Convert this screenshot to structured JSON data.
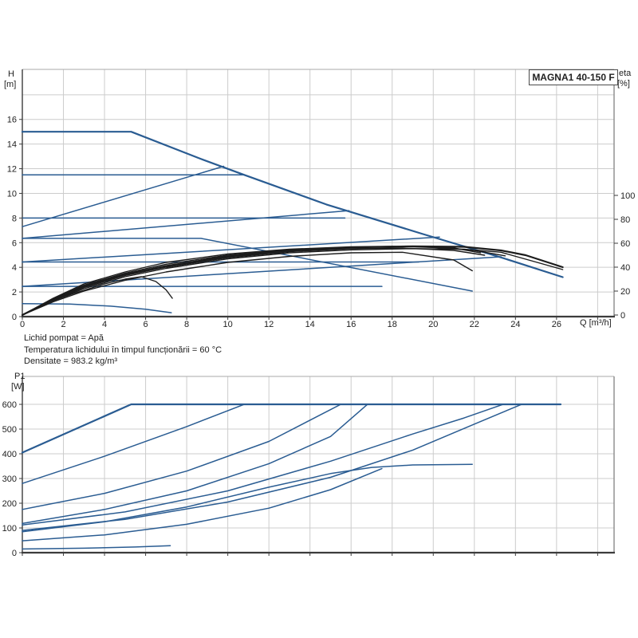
{
  "header": {
    "title": "MAGNA1 40-150 F"
  },
  "axis_labels": {
    "h_top": "H",
    "h_bottom": "[m]",
    "eta_top": "eta",
    "eta_bottom": "[%]",
    "q_label": "Q [m³/h]",
    "p_top": "P1",
    "p_bottom": "[W]"
  },
  "footer": {
    "line1": "Lichid pompat = Apă",
    "line2": "Temperatura lichidului în timpul funcționării = 60 °C",
    "line3": "Densitate = 983.2 kg/m³"
  },
  "colors": {
    "curve_blue": "#2a5c92",
    "curve_black": "#1c1c1c",
    "grid": "#cccccc",
    "frame_light": "#aaaaaa",
    "axis_dark": "#3c3c3c",
    "text": "#222222",
    "background": "#ffffff"
  },
  "chart_data": [
    {
      "id": "hq",
      "type": "line",
      "title": "MAGNA1 40-150 F",
      "xlabel": "Q [m³/h]",
      "ylabel": "H [m]",
      "y2label": "eta [%]",
      "xlim": [
        0,
        28.8
      ],
      "ylim": [
        0,
        20.06
      ],
      "y2lim": [
        0,
        100
      ],
      "xticks": [
        0,
        2,
        4,
        6,
        8,
        10,
        12,
        14,
        16,
        18,
        20,
        22,
        24,
        26
      ],
      "xgrid": [
        0,
        2,
        4,
        6,
        8,
        10,
        12,
        14,
        16,
        18,
        20,
        22,
        24,
        26,
        28
      ],
      "yticks": [
        0,
        2,
        4,
        6,
        8,
        10,
        12,
        14,
        16
      ],
      "ygrid": [
        0,
        2,
        4,
        6,
        8,
        10,
        12,
        14,
        16,
        18
      ],
      "y2ticks": [
        0,
        20,
        40,
        60,
        80,
        100
      ],
      "grid": true,
      "legend": "none",
      "series": [
        {
          "name": "max-speed-curve",
          "axis": "y",
          "color": "blue",
          "lw": 2.2,
          "points": [
            [
              0,
              15
            ],
            [
              5.3,
              15
            ],
            [
              8.6,
              12.85
            ],
            [
              10.8,
              11.5
            ],
            [
              14.8,
              9.1
            ],
            [
              19.5,
              6.7
            ],
            [
              23.3,
              4.8
            ],
            [
              26.3,
              3.2
            ]
          ]
        },
        {
          "name": "const-pressure-11.5",
          "axis": "y",
          "color": "blue",
          "lw": 1.5,
          "points": [
            [
              0,
              11.5
            ],
            [
              10.75,
              11.5
            ]
          ]
        },
        {
          "name": "const-pressure-8",
          "axis": "y",
          "color": "blue",
          "lw": 1.5,
          "points": [
            [
              0,
              8
            ],
            [
              15.7,
              8
            ]
          ]
        },
        {
          "name": "const-pressure-6.4-with-descent",
          "axis": "y",
          "color": "blue",
          "lw": 1.5,
          "points": [
            [
              0,
              6.35
            ],
            [
              8.7,
              6.35
            ],
            [
              21.9,
              2.07
            ]
          ]
        },
        {
          "name": "const-pressure-4.4",
          "axis": "y",
          "color": "blue",
          "lw": 1.5,
          "points": [
            [
              0,
              4.43
            ],
            [
              19.3,
              4.43
            ]
          ]
        },
        {
          "name": "const-pressure-2.4",
          "axistern": "y",
          "axis": "y",
          "color": "blue",
          "lw": 1.5,
          "points": [
            [
              0,
              2.45
            ],
            [
              17.5,
              2.45
            ]
          ]
        },
        {
          "name": "min-speed-curve",
          "axis": "y",
          "color": "blue",
          "lw": 1.5,
          "points": [
            [
              0,
              1.05
            ],
            [
              2.3,
              1.02
            ],
            [
              4.3,
              0.85
            ],
            [
              6,
              0.6
            ],
            [
              7.25,
              0.32
            ]
          ]
        },
        {
          "name": "prop-pressure-rise-1",
          "axis": "y",
          "color": "blue",
          "lw": 1.5,
          "points": [
            [
              0,
              7.3
            ],
            [
              9.8,
              12.2
            ]
          ]
        },
        {
          "name": "prop-pressure-rise-2",
          "axis": "y",
          "color": "blue",
          "lw": 1.5,
          "points": [
            [
              0,
              6.35
            ],
            [
              15.9,
              8.6
            ]
          ]
        },
        {
          "name": "prop-pressure-rise-3",
          "axis": "y",
          "color": "blue",
          "lw": 1.5,
          "points": [
            [
              0,
              4.43
            ],
            [
              20.3,
              6.45
            ]
          ]
        },
        {
          "name": "prop-pressure-rise-4",
          "axis": "y",
          "color": "blue",
          "lw": 1.5,
          "points": [
            [
              0,
              2.45
            ],
            [
              23.3,
              4.85
            ]
          ]
        },
        {
          "name": "eta-curve-1",
          "axis": "y2",
          "color": "black",
          "lw": 2.2,
          "points": [
            [
              0,
              0
            ],
            [
              1.5,
              13
            ],
            [
              3,
              24
            ],
            [
              5,
              34
            ],
            [
              7,
              41
            ],
            [
              10,
              49
            ],
            [
              13,
              54
            ],
            [
              16,
              56.5
            ],
            [
              19,
              57.5
            ],
            [
              21.5,
              57
            ],
            [
              23.3,
              54
            ],
            [
              24.5,
              50
            ],
            [
              26.3,
              40
            ]
          ]
        },
        {
          "name": "eta-curve-2",
          "axis": "y2",
          "color": "black",
          "lw": 1.4,
          "points": [
            [
              0,
              0
            ],
            [
              1.5,
              12
            ],
            [
              3,
              22
            ],
            [
              5,
              32
            ],
            [
              7,
              39
            ],
            [
              10,
              47
            ],
            [
              13,
              52
            ],
            [
              16,
              54.5
            ],
            [
              19,
              55.5
            ],
            [
              21.5,
              55
            ],
            [
              23.3,
              52.5
            ],
            [
              26.3,
              38
            ]
          ]
        },
        {
          "name": "eta-curve-3",
          "axis": "y2",
          "color": "black",
          "lw": 1.4,
          "points": [
            [
              0,
              0
            ],
            [
              1.5,
              14
            ],
            [
              3,
              26
            ],
            [
              5,
              36
            ],
            [
              7,
              44
            ],
            [
              10,
              51
            ],
            [
              13,
              55
            ],
            [
              16,
              57
            ],
            [
              18,
              57.5
            ],
            [
              20,
              56.5
            ],
            [
              22,
              54
            ],
            [
              23.5,
              49.5
            ]
          ]
        },
        {
          "name": "eta-curve-4",
          "axis": "y2",
          "color": "black",
          "lw": 1.4,
          "points": [
            [
              0,
              0
            ],
            [
              1.5,
              11
            ],
            [
              3,
              20
            ],
            [
              5,
              29
            ],
            [
              7,
              36
            ],
            [
              10,
              44
            ],
            [
              13,
              49
            ],
            [
              16,
              52
            ],
            [
              18.5,
              52.5
            ],
            [
              21,
              46
            ],
            [
              21.9,
              37
            ]
          ]
        },
        {
          "name": "eta-curve-5",
          "axis": "y2",
          "color": "black",
          "lw": 1.4,
          "points": [
            [
              0,
              0
            ],
            [
              1.5,
              12.5
            ],
            [
              3,
              23
            ],
            [
              5,
              33
            ],
            [
              7,
              40
            ],
            [
              10,
              48
            ],
            [
              13,
              53
            ],
            [
              16,
              55.5
            ],
            [
              18.5,
              56
            ],
            [
              21,
              54
            ],
            [
              22.5,
              50
            ]
          ]
        },
        {
          "name": "eta-curve-6",
          "axis": "y2",
          "color": "black",
          "lw": 1.4,
          "points": [
            [
              0,
              0
            ],
            [
              1.5,
              13.5
            ],
            [
              3,
              25
            ],
            [
              5,
              35
            ],
            [
              7,
              42.5
            ],
            [
              10,
              50
            ],
            [
              13,
              54.5
            ],
            [
              16,
              56.8
            ],
            [
              19,
              57.2
            ],
            [
              21,
              56
            ],
            [
              22.3,
              52
            ]
          ]
        },
        {
          "name": "eta-curve-min-speed",
          "axis": "y2",
          "color": "black",
          "lw": 1.4,
          "points": [
            [
              0,
              0
            ],
            [
              1.2,
              10
            ],
            [
              2.5,
              18
            ],
            [
              4,
              26
            ],
            [
              5,
              30
            ],
            [
              5.8,
              32
            ],
            [
              6.5,
              28
            ],
            [
              7,
              21
            ],
            [
              7.3,
              14
            ]
          ]
        }
      ]
    },
    {
      "id": "p1",
      "type": "line",
      "title": "",
      "xlabel": "",
      "ylabel": "P1 [W]",
      "xlim": [
        0,
        28.8
      ],
      "ylim": [
        0,
        713
      ],
      "xticks": [],
      "xgrid": [
        0,
        2,
        4,
        6,
        8,
        10,
        12,
        14,
        16,
        18,
        20,
        22,
        24,
        26,
        28
      ],
      "yticks": [
        0,
        100,
        200,
        300,
        400,
        500,
        600
      ],
      "ygrid": [
        0,
        100,
        200,
        300,
        400,
        500,
        600
      ],
      "y2ticks": [],
      "grid": true,
      "legend": "none",
      "series": [
        {
          "name": "power-max-speed",
          "axis": "y",
          "color": "blue",
          "lw": 2.2,
          "points": [
            [
              0,
              405
            ],
            [
              5.3,
              600
            ],
            [
              26.2,
              600
            ]
          ]
        },
        {
          "name": "power-curve-2",
          "axis": "y",
          "color": "blue",
          "lw": 1.5,
          "points": [
            [
              0,
              280
            ],
            [
              4,
              390
            ],
            [
              8,
              510
            ],
            [
              10.8,
              600
            ]
          ]
        },
        {
          "name": "power-curve-3",
          "axis": "y",
          "color": "blue",
          "lw": 1.5,
          "points": [
            [
              0,
              175
            ],
            [
              4,
              240
            ],
            [
              8,
              330
            ],
            [
              12,
              450
            ],
            [
              15.5,
              600
            ]
          ]
        },
        {
          "name": "power-curve-4",
          "axis": "y",
          "color": "blue",
          "lw": 1.5,
          "points": [
            [
              0,
              118
            ],
            [
              4,
              175
            ],
            [
              8,
              250
            ],
            [
              12,
              360
            ],
            [
              15,
              470
            ],
            [
              16.8,
              600
            ]
          ]
        },
        {
          "name": "power-curve-5",
          "axis": "y",
          "color": "blue",
          "lw": 1.5,
          "points": [
            [
              0,
              112
            ],
            [
              5,
              165
            ],
            [
              10,
              250
            ],
            [
              15,
              370
            ],
            [
              19,
              480
            ],
            [
              21.5,
              545
            ],
            [
              23.4,
              600
            ]
          ]
        },
        {
          "name": "power-curve-6",
          "axis": "y",
          "color": "blue",
          "lw": 1.5,
          "points": [
            [
              0,
              90
            ],
            [
              5,
              135
            ],
            [
              10,
              205
            ],
            [
              15,
              305
            ],
            [
              19,
              415
            ],
            [
              22,
              520
            ],
            [
              24.3,
              600
            ]
          ]
        },
        {
          "name": "power-curve-7",
          "axis": "y",
          "color": "blue",
          "lw": 1.5,
          "points": [
            [
              0,
              85
            ],
            [
              4,
              125
            ],
            [
              8,
              185
            ],
            [
              12,
              265
            ],
            [
              15,
              320
            ],
            [
              17,
              345
            ],
            [
              19,
              355
            ],
            [
              21.9,
              357
            ]
          ]
        },
        {
          "name": "power-curve-8",
          "axis": "y",
          "color": "blue",
          "lw": 1.5,
          "points": [
            [
              0,
              48
            ],
            [
              4,
              72
            ],
            [
              8,
              115
            ],
            [
              12,
              180
            ],
            [
              15,
              255
            ],
            [
              17.5,
              340
            ]
          ]
        },
        {
          "name": "power-min-speed",
          "axis": "y",
          "color": "blue",
          "lw": 1.5,
          "points": [
            [
              0,
              15
            ],
            [
              3,
              18
            ],
            [
              5.5,
              23
            ],
            [
              7.2,
              28
            ]
          ]
        }
      ]
    }
  ]
}
